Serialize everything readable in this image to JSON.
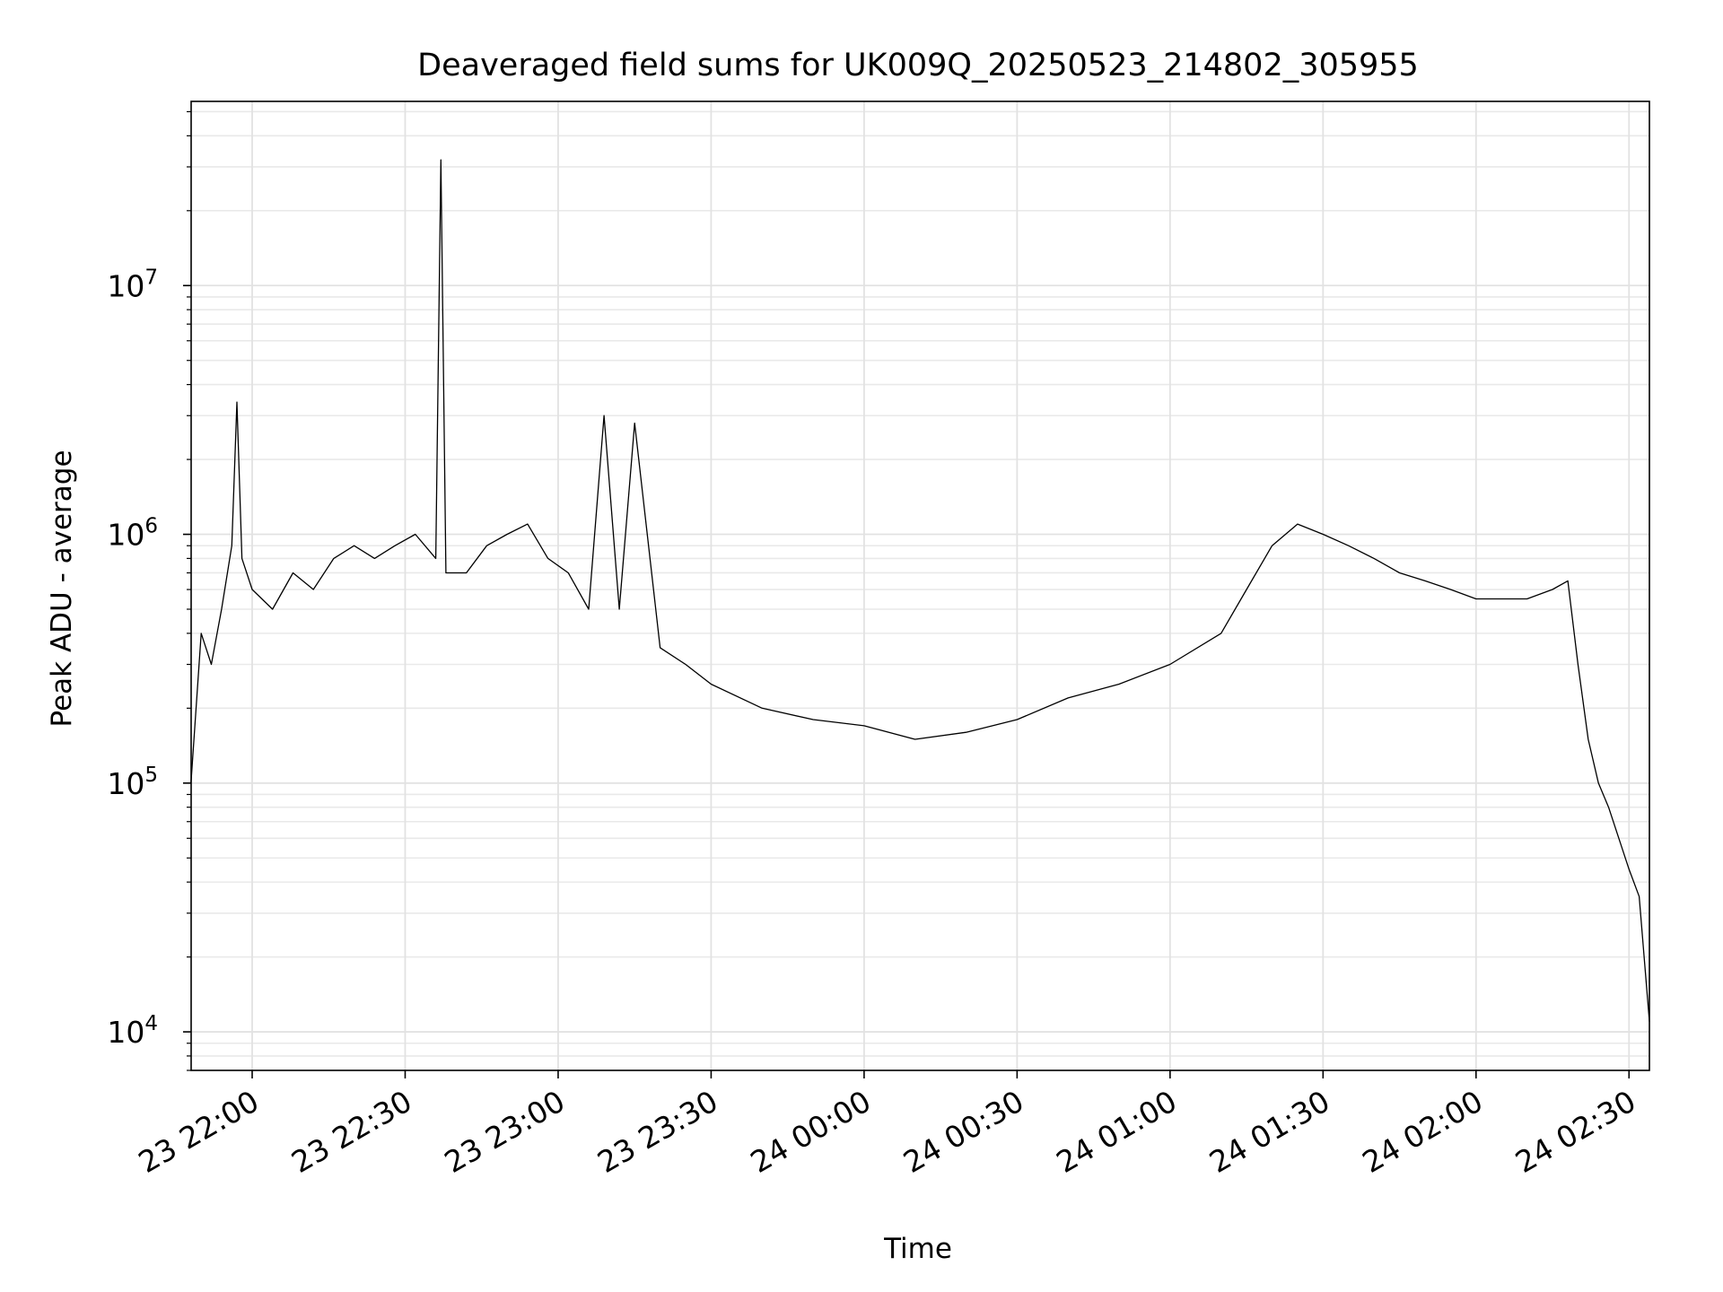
{
  "chart_data": {
    "type": "line",
    "title": "Deaveraged field sums for UK009Q_20250523_214802_305955",
    "xlabel": "Time",
    "ylabel": "Peak ADU - average",
    "yscale": "log",
    "grid": true,
    "xlim": [
      "2025-05-23 21:48:02",
      "2025-05-24 02:34:00"
    ],
    "ylim": [
      7000,
      55000000
    ],
    "x_ticks": [
      {
        "t": "2025-05-23 22:00",
        "label": "23 22:00"
      },
      {
        "t": "2025-05-23 22:30",
        "label": "23 22:30"
      },
      {
        "t": "2025-05-23 23:00",
        "label": "23 23:00"
      },
      {
        "t": "2025-05-23 23:30",
        "label": "23 23:30"
      },
      {
        "t": "2025-05-24 00:00",
        "label": "24 00:00"
      },
      {
        "t": "2025-05-24 00:30",
        "label": "24 00:30"
      },
      {
        "t": "2025-05-24 01:00",
        "label": "24 01:00"
      },
      {
        "t": "2025-05-24 01:30",
        "label": "24 01:30"
      },
      {
        "t": "2025-05-24 02:00",
        "label": "24 02:00"
      },
      {
        "t": "2025-05-24 02:30",
        "label": "24 02:30"
      }
    ],
    "y_ticks": [
      {
        "value": 10000,
        "base": "10",
        "exp": "4"
      },
      {
        "value": 100000,
        "base": "10",
        "exp": "5"
      },
      {
        "value": 1000000,
        "base": "10",
        "exp": "6"
      },
      {
        "value": 10000000,
        "base": "10",
        "exp": "7"
      }
    ],
    "series": [
      {
        "color": "#000000",
        "x": [
          "2025-05-23 21:48",
          "2025-05-23 21:50",
          "2025-05-23 21:52",
          "2025-05-23 21:54",
          "2025-05-23 21:56",
          "2025-05-23 21:57",
          "2025-05-23 21:58",
          "2025-05-23 22:00",
          "2025-05-23 22:04",
          "2025-05-23 22:08",
          "2025-05-23 22:12",
          "2025-05-23 22:16",
          "2025-05-23 22:20",
          "2025-05-23 22:24",
          "2025-05-23 22:28",
          "2025-05-23 22:32",
          "2025-05-23 22:36",
          "2025-05-23 22:37",
          "2025-05-23 22:38",
          "2025-05-23 22:42",
          "2025-05-23 22:46",
          "2025-05-23 22:50",
          "2025-05-23 22:54",
          "2025-05-23 22:58",
          "2025-05-23 23:02",
          "2025-05-23 23:06",
          "2025-05-23 23:09",
          "2025-05-23 23:12",
          "2025-05-23 23:15",
          "2025-05-23 23:20",
          "2025-05-23 23:25",
          "2025-05-23 23:30",
          "2025-05-23 23:40",
          "2025-05-23 23:50",
          "2025-05-24 00:00",
          "2025-05-24 00:10",
          "2025-05-24 00:20",
          "2025-05-24 00:30",
          "2025-05-24 00:40",
          "2025-05-24 00:50",
          "2025-05-24 01:00",
          "2025-05-24 01:10",
          "2025-05-24 01:15",
          "2025-05-24 01:20",
          "2025-05-24 01:25",
          "2025-05-24 01:30",
          "2025-05-24 01:35",
          "2025-05-24 01:40",
          "2025-05-24 01:45",
          "2025-05-24 01:50",
          "2025-05-24 01:55",
          "2025-05-24 02:00",
          "2025-05-24 02:05",
          "2025-05-24 02:10",
          "2025-05-24 02:15",
          "2025-05-24 02:18",
          "2025-05-24 02:20",
          "2025-05-24 02:22",
          "2025-05-24 02:24",
          "2025-05-24 02:26",
          "2025-05-24 02:28",
          "2025-05-24 02:30",
          "2025-05-24 02:32",
          "2025-05-24 02:34"
        ],
        "y": [
          100000,
          400000,
          300000,
          500000,
          900000,
          3400000,
          800000,
          600000,
          500000,
          700000,
          600000,
          800000,
          900000,
          800000,
          900000,
          1000000,
          800000,
          32000000,
          700000,
          700000,
          900000,
          1000000,
          1100000,
          800000,
          700000,
          500000,
          3000000,
          500000,
          2800000,
          350000,
          300000,
          250000,
          200000,
          180000,
          170000,
          150000,
          160000,
          180000,
          220000,
          250000,
          300000,
          400000,
          600000,
          900000,
          1100000,
          1000000,
          900000,
          800000,
          700000,
          650000,
          600000,
          550000,
          550000,
          550000,
          600000,
          650000,
          300000,
          150000,
          100000,
          80000,
          60000,
          45000,
          35000,
          11000
        ]
      }
    ]
  }
}
